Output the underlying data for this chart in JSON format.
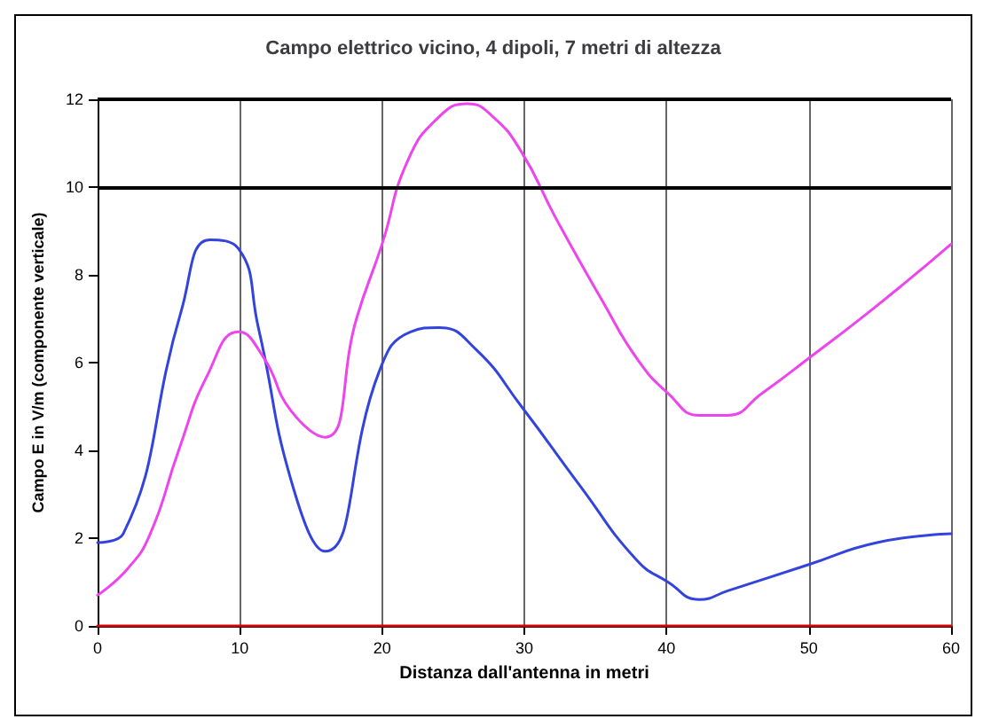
{
  "chart_data": {
    "type": "line",
    "title": "Campo elettrico vicino, 4 dipoli, 7 metri di altezza",
    "xlabel": "Distanza dall'antenna in metri",
    "ylabel": "Campo E in V/m (componente verticale)",
    "xlim": [
      0,
      60
    ],
    "xticks": [
      0,
      10,
      20,
      30,
      40,
      50,
      60
    ],
    "ylim": [
      0,
      12
    ],
    "yticks": [
      0,
      2,
      4,
      6,
      8,
      10,
      12
    ],
    "grid": "x",
    "marker": "none",
    "line_style": "solid",
    "ref_lines": [
      {
        "axis": "y",
        "value": 10,
        "color": "#000000"
      },
      {
        "axis": "y",
        "value": 12,
        "color": "#000000"
      }
    ],
    "series": [
      {
        "color": "#3344dd",
        "x": [
          0,
          1.8,
          5.9,
          7.9,
          9.9,
          11.3,
          13.8,
          16,
          19.8,
          22,
          24,
          26.6,
          29.8,
          33.9,
          37.9,
          40.1,
          42.3,
          44.3,
          50,
          54.8,
          60
        ],
        "values": [
          1.9,
          2.1,
          7.2,
          8.8,
          8.6,
          6.8,
          3.1,
          1.7,
          5.8,
          6.7,
          6.8,
          6.3,
          5,
          3.2,
          1.5,
          1,
          0.6,
          0.8,
          1.4,
          1.9,
          2.1
        ]
      },
      {
        "color": "#ee44ee",
        "x": [
          0,
          2.1,
          3.7,
          5.7,
          7.7,
          9.9,
          11.7,
          13.6,
          16,
          18.2,
          20,
          21.8,
          24,
          26,
          27.8,
          29.8,
          32.2,
          35.5,
          37.9,
          40.1,
          42.3,
          44.3,
          46.7,
          50,
          54.8,
          60
        ],
        "values": [
          0.7,
          1.3,
          2.1,
          4,
          5.7,
          6.7,
          6.1,
          4.9,
          4.3,
          7,
          8.7,
          10.6,
          11.6,
          11.9,
          11.6,
          10.8,
          9.3,
          7.4,
          6.1,
          5.3,
          4.8,
          4.8,
          5.3,
          6.1,
          7.3,
          8.7
        ]
      },
      {
        "color": "#dd0000",
        "x": [
          0,
          60
        ],
        "values": [
          0,
          0
        ]
      }
    ]
  }
}
